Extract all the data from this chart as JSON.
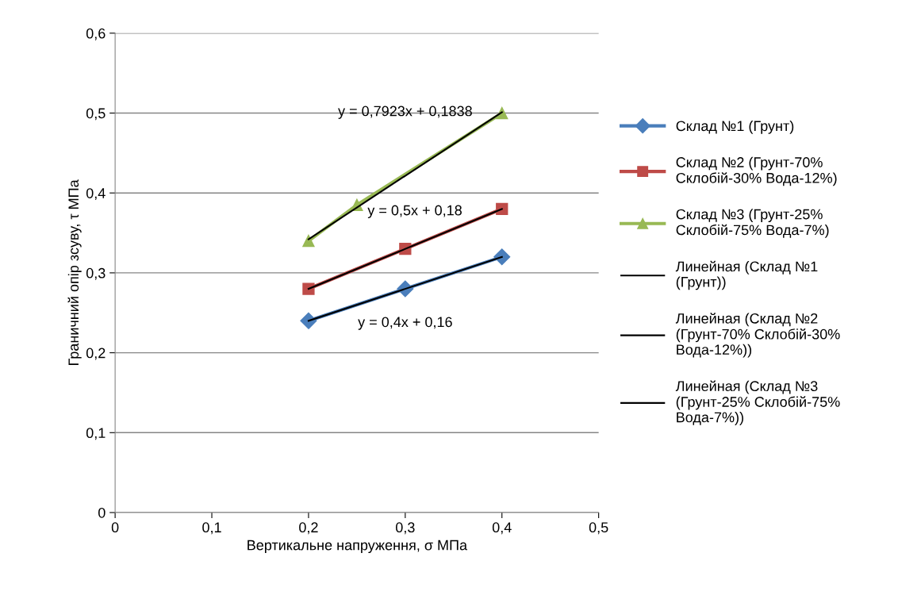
{
  "chart_data": {
    "type": "line",
    "xlabel": "Вертикальне напруження, σ МПа",
    "ylabel": "Граничний опір зсуву, τ МПа",
    "xlim": [
      0,
      0.5
    ],
    "xticks": [
      0,
      {
        "value": 0.1,
        "label": "0,1"
      },
      {
        "value": 0.2,
        "label": "0,2"
      },
      {
        "value": 0.3,
        "label": "0,3"
      },
      {
        "value": 0.4,
        "label": "0,4"
      },
      {
        "value": 0.5,
        "label": "0,5"
      }
    ],
    "ylim": [
      0,
      0.6
    ],
    "yticks": [
      0,
      {
        "value": 0.1,
        "label": "0,1"
      },
      {
        "value": 0.2,
        "label": "0,2"
      },
      {
        "value": 0.3,
        "label": "0,3"
      },
      {
        "value": 0.4,
        "label": "0,4"
      },
      {
        "value": 0.5,
        "label": "0,5"
      },
      {
        "value": 0.6,
        "label": "0,6"
      }
    ],
    "grid": "y",
    "legend": "right",
    "series": [
      {
        "name": "Склад №1 (Грунт)",
        "color": "#4a7ebb",
        "marker": "diamond",
        "x": [
          0.2,
          0.3,
          0.4
        ],
        "values": [
          0.24,
          0.28,
          0.32
        ]
      },
      {
        "name": "Склад №2 (Грунт-70% Склобій-30% Вода-12%)",
        "color": "#be4b48",
        "marker": "square",
        "x": [
          0.2,
          0.3,
          0.4
        ],
        "values": [
          0.28,
          0.33,
          0.38
        ]
      },
      {
        "name": "Склад №3 (Грунт-25% Склобій-75% Вода-7%)",
        "color": "#98b954",
        "marker": "triangle",
        "x": [
          0.2,
          0.25,
          0.4
        ],
        "values": [
          0.34,
          0.385,
          0.5
        ]
      },
      {
        "name": "Линейная (Склад №1 (Грунт))",
        "color": "#000000",
        "marker": "none",
        "x": [
          0.2,
          0.4
        ],
        "values": [
          0.24,
          0.32
        ]
      },
      {
        "name": "Линейная (Склад №2 (Грунт-70% Склобій-30% Вода-12%))",
        "color": "#000000",
        "marker": "none",
        "x": [
          0.2,
          0.4
        ],
        "values": [
          0.28,
          0.38
        ]
      },
      {
        "name": "Линейная (Склад №3 (Грунт-25% Склобій-75% Вода-7%))",
        "color": "#000000",
        "marker": "none",
        "x": [
          0.2,
          0.4
        ],
        "values": [
          0.342,
          0.501
        ]
      }
    ],
    "annotations": [
      "y = 0,7923x + 0,1838",
      "y = 0,5x + 0,18",
      "y = 0,4x + 0,16"
    ]
  }
}
